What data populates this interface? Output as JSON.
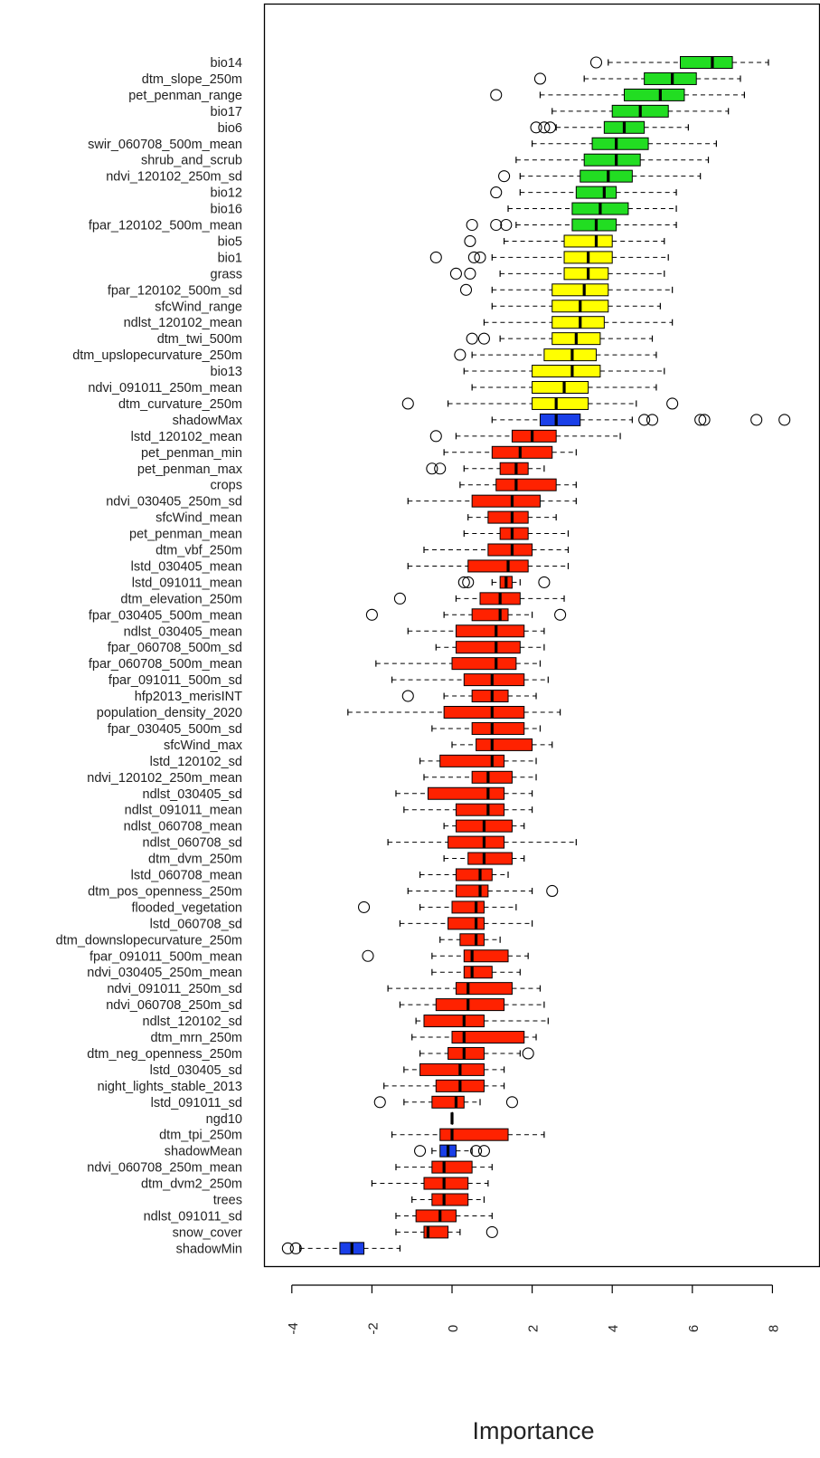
{
  "chart_data": {
    "type": "boxplot",
    "orientation": "horizontal",
    "xlabel": "Importance",
    "xlim": [
      -4.5,
      8.5
    ],
    "xticks": [
      -4,
      -2,
      0,
      2,
      4,
      6,
      8
    ],
    "xtick_labels": [
      "-4",
      "-2",
      "0",
      "2",
      "4",
      "6",
      "8"
    ],
    "colors": {
      "green": "#22dd22",
      "yellow": "#ffff00",
      "red": "#ff2200",
      "blue": "#1a3fe8"
    },
    "series": [
      {
        "name": "bio14",
        "color": "green",
        "wlo": 3.9,
        "q1": 5.7,
        "med": 6.5,
        "q3": 7.0,
        "whi": 7.9,
        "out": [
          3.6
        ]
      },
      {
        "name": "dtm_slope_250m",
        "color": "green",
        "wlo": 3.3,
        "q1": 4.8,
        "med": 5.5,
        "q3": 6.1,
        "whi": 7.2,
        "out": [
          2.2
        ]
      },
      {
        "name": "pet_penman_range",
        "color": "green",
        "wlo": 2.2,
        "q1": 4.3,
        "med": 5.2,
        "q3": 5.8,
        "whi": 7.3,
        "out": [
          1.1
        ]
      },
      {
        "name": "bio17",
        "color": "green",
        "wlo": 2.5,
        "q1": 4.0,
        "med": 4.7,
        "q3": 5.4,
        "whi": 6.9,
        "out": []
      },
      {
        "name": "bio6",
        "color": "green",
        "wlo": 2.6,
        "q1": 3.8,
        "med": 4.3,
        "q3": 4.8,
        "whi": 5.9,
        "out": [
          2.1,
          2.3,
          2.45
        ]
      },
      {
        "name": "swir_060708_500m_mean",
        "color": "green",
        "wlo": 2.0,
        "q1": 3.5,
        "med": 4.1,
        "q3": 4.9,
        "whi": 6.6,
        "out": []
      },
      {
        "name": "shrub_and_scrub",
        "color": "green",
        "wlo": 1.6,
        "q1": 3.3,
        "med": 4.1,
        "q3": 4.7,
        "whi": 6.4,
        "out": []
      },
      {
        "name": "ndvi_120102_250m_sd",
        "color": "green",
        "wlo": 1.7,
        "q1": 3.2,
        "med": 3.9,
        "q3": 4.5,
        "whi": 6.2,
        "out": [
          1.3
        ]
      },
      {
        "name": "bio12",
        "color": "green",
        "wlo": 1.7,
        "q1": 3.1,
        "med": 3.8,
        "q3": 4.1,
        "whi": 5.6,
        "out": [
          1.1
        ]
      },
      {
        "name": "bio16",
        "color": "green",
        "wlo": 1.4,
        "q1": 3.0,
        "med": 3.7,
        "q3": 4.4,
        "whi": 5.6,
        "out": []
      },
      {
        "name": "fpar_120102_500m_mean",
        "color": "green",
        "wlo": 1.6,
        "q1": 3.0,
        "med": 3.6,
        "q3": 4.1,
        "whi": 5.6,
        "out": [
          0.5,
          1.1,
          1.35
        ]
      },
      {
        "name": "bio5",
        "color": "yellow",
        "wlo": 1.3,
        "q1": 2.8,
        "med": 3.6,
        "q3": 4.0,
        "whi": 5.3,
        "out": [
          0.45
        ]
      },
      {
        "name": "bio1",
        "color": "yellow",
        "wlo": 1.0,
        "q1": 2.8,
        "med": 3.4,
        "q3": 4.0,
        "whi": 5.4,
        "out": [
          -0.4,
          0.55,
          0.7
        ]
      },
      {
        "name": "grass",
        "color": "yellow",
        "wlo": 1.2,
        "q1": 2.8,
        "med": 3.4,
        "q3": 3.9,
        "whi": 5.3,
        "out": [
          0.1,
          0.45
        ]
      },
      {
        "name": "fpar_120102_500m_sd",
        "color": "yellow",
        "wlo": 1.0,
        "q1": 2.5,
        "med": 3.3,
        "q3": 3.9,
        "whi": 5.5,
        "out": [
          0.35
        ]
      },
      {
        "name": "sfcWind_range",
        "color": "yellow",
        "wlo": 1.0,
        "q1": 2.5,
        "med": 3.2,
        "q3": 3.9,
        "whi": 5.2,
        "out": []
      },
      {
        "name": "ndlst_120102_mean",
        "color": "yellow",
        "wlo": 0.8,
        "q1": 2.5,
        "med": 3.2,
        "q3": 3.8,
        "whi": 5.5,
        "out": []
      },
      {
        "name": "dtm_twi_500m",
        "color": "yellow",
        "wlo": 1.2,
        "q1": 2.5,
        "med": 3.1,
        "q3": 3.7,
        "whi": 5.0,
        "out": [
          0.5,
          0.8
        ]
      },
      {
        "name": "dtm_upslopecurvature_250m",
        "color": "yellow",
        "wlo": 0.5,
        "q1": 2.3,
        "med": 3.0,
        "q3": 3.6,
        "whi": 5.1,
        "out": [
          0.2
        ]
      },
      {
        "name": "bio13",
        "color": "yellow",
        "wlo": 0.3,
        "q1": 2.0,
        "med": 3.0,
        "q3": 3.7,
        "whi": 5.3,
        "out": []
      },
      {
        "name": "ndvi_091011_250m_mean",
        "color": "yellow",
        "wlo": 0.5,
        "q1": 2.0,
        "med": 2.8,
        "q3": 3.4,
        "whi": 5.1,
        "out": []
      },
      {
        "name": "dtm_curvature_250m",
        "color": "yellow",
        "wlo": -0.1,
        "q1": 2.0,
        "med": 2.6,
        "q3": 3.4,
        "whi": 4.6,
        "out": [
          -1.1,
          5.5
        ]
      },
      {
        "name": "shadowMax",
        "color": "blue",
        "wlo": 1.0,
        "q1": 2.2,
        "med": 2.6,
        "q3": 3.2,
        "whi": 4.5,
        "out": [
          4.8,
          5.0,
          6.2,
          6.3,
          7.6,
          8.3
        ]
      },
      {
        "name": "lstd_120102_mean",
        "color": "red",
        "wlo": 0.1,
        "q1": 1.5,
        "med": 2.0,
        "q3": 2.6,
        "whi": 4.2,
        "out": [
          -0.4
        ]
      },
      {
        "name": "pet_penman_min",
        "color": "red",
        "wlo": -0.2,
        "q1": 1.0,
        "med": 1.7,
        "q3": 2.5,
        "whi": 3.1,
        "out": []
      },
      {
        "name": "pet_penman_max",
        "color": "red",
        "wlo": 0.3,
        "q1": 1.2,
        "med": 1.6,
        "q3": 1.9,
        "whi": 2.3,
        "out": [
          -0.5,
          -0.3
        ]
      },
      {
        "name": "crops",
        "color": "red",
        "wlo": 0.2,
        "q1": 1.1,
        "med": 1.6,
        "q3": 2.6,
        "whi": 3.1,
        "out": []
      },
      {
        "name": "ndvi_030405_250m_sd",
        "color": "red",
        "wlo": -1.1,
        "q1": 0.5,
        "med": 1.5,
        "q3": 2.2,
        "whi": 3.1,
        "out": []
      },
      {
        "name": "sfcWind_mean",
        "color": "red",
        "wlo": 0.4,
        "q1": 0.9,
        "med": 1.5,
        "q3": 1.9,
        "whi": 2.6,
        "out": []
      },
      {
        "name": "pet_penman_mean",
        "color": "red",
        "wlo": 0.3,
        "q1": 1.2,
        "med": 1.5,
        "q3": 1.9,
        "whi": 2.9,
        "out": []
      },
      {
        "name": "dtm_vbf_250m",
        "color": "red",
        "wlo": -0.7,
        "q1": 0.9,
        "med": 1.5,
        "q3": 2.0,
        "whi": 2.9,
        "out": []
      },
      {
        "name": "lstd_030405_mean",
        "color": "red",
        "wlo": -1.1,
        "q1": 0.4,
        "med": 1.4,
        "q3": 1.9,
        "whi": 2.9,
        "out": []
      },
      {
        "name": "lstd_091011_mean",
        "color": "red",
        "wlo": 1.0,
        "q1": 1.2,
        "med": 1.35,
        "q3": 1.5,
        "whi": 1.7,
        "out": [
          0.3,
          0.4,
          2.3
        ]
      },
      {
        "name": "dtm_elevation_250m",
        "color": "red",
        "wlo": 0.1,
        "q1": 0.7,
        "med": 1.2,
        "q3": 1.7,
        "whi": 2.8,
        "out": [
          -1.3
        ]
      },
      {
        "name": "fpar_030405_500m_mean",
        "color": "red",
        "wlo": -0.2,
        "q1": 0.5,
        "med": 1.2,
        "q3": 1.4,
        "whi": 2.0,
        "out": [
          -2.0,
          2.7
        ]
      },
      {
        "name": "ndlst_030405_mean",
        "color": "red",
        "wlo": -1.1,
        "q1": 0.1,
        "med": 1.1,
        "q3": 1.8,
        "whi": 2.3,
        "out": []
      },
      {
        "name": "fpar_060708_500m_sd",
        "color": "red",
        "wlo": -0.4,
        "q1": 0.1,
        "med": 1.1,
        "q3": 1.7,
        "whi": 2.3,
        "out": []
      },
      {
        "name": "fpar_060708_500m_mean",
        "color": "red",
        "wlo": -1.9,
        "q1": 0.0,
        "med": 1.1,
        "q3": 1.6,
        "whi": 2.2,
        "out": []
      },
      {
        "name": "fpar_091011_500m_sd",
        "color": "red",
        "wlo": -1.5,
        "q1": 0.3,
        "med": 1.0,
        "q3": 1.8,
        "whi": 2.4,
        "out": []
      },
      {
        "name": "hfp2013_merisINT",
        "color": "red",
        "wlo": -0.2,
        "q1": 0.5,
        "med": 1.0,
        "q3": 1.4,
        "whi": 2.1,
        "out": [
          -1.1
        ]
      },
      {
        "name": "population_density_2020",
        "color": "red",
        "wlo": -2.6,
        "q1": -0.2,
        "med": 1.0,
        "q3": 1.8,
        "whi": 2.7,
        "out": []
      },
      {
        "name": "fpar_030405_500m_sd",
        "color": "red",
        "wlo": -0.5,
        "q1": 0.5,
        "med": 1.0,
        "q3": 1.8,
        "whi": 2.2,
        "out": []
      },
      {
        "name": "sfcWind_max",
        "color": "red",
        "wlo": 0.0,
        "q1": 0.6,
        "med": 1.0,
        "q3": 2.0,
        "whi": 2.5,
        "out": []
      },
      {
        "name": "lstd_120102_sd",
        "color": "red",
        "wlo": -0.8,
        "q1": -0.3,
        "med": 1.0,
        "q3": 1.3,
        "whi": 2.1,
        "out": []
      },
      {
        "name": "ndvi_120102_250m_mean",
        "color": "red",
        "wlo": -0.7,
        "q1": 0.5,
        "med": 0.9,
        "q3": 1.5,
        "whi": 2.1,
        "out": []
      },
      {
        "name": "ndlst_030405_sd",
        "color": "red",
        "wlo": -1.4,
        "q1": -0.6,
        "med": 0.9,
        "q3": 1.3,
        "whi": 2.0,
        "out": []
      },
      {
        "name": "ndlst_091011_mean",
        "color": "red",
        "wlo": -1.2,
        "q1": 0.1,
        "med": 0.9,
        "q3": 1.3,
        "whi": 2.0,
        "out": []
      },
      {
        "name": "ndlst_060708_mean",
        "color": "red",
        "wlo": -0.2,
        "q1": 0.1,
        "med": 0.8,
        "q3": 1.5,
        "whi": 1.8,
        "out": []
      },
      {
        "name": "ndlst_060708_sd",
        "color": "red",
        "wlo": -1.6,
        "q1": -0.1,
        "med": 0.8,
        "q3": 1.3,
        "whi": 3.1,
        "out": []
      },
      {
        "name": "dtm_dvm_250m",
        "color": "red",
        "wlo": -0.2,
        "q1": 0.4,
        "med": 0.8,
        "q3": 1.5,
        "whi": 1.8,
        "out": []
      },
      {
        "name": "lstd_060708_mean",
        "color": "red",
        "wlo": -0.8,
        "q1": 0.1,
        "med": 0.7,
        "q3": 1.0,
        "whi": 1.4,
        "out": []
      },
      {
        "name": "dtm_pos_openness_250m",
        "color": "red",
        "wlo": -1.1,
        "q1": 0.1,
        "med": 0.7,
        "q3": 0.9,
        "whi": 2.0,
        "out": [
          2.5
        ]
      },
      {
        "name": "flooded_vegetation",
        "color": "red",
        "wlo": -0.8,
        "q1": 0.0,
        "med": 0.6,
        "q3": 0.8,
        "whi": 1.6,
        "out": [
          -2.2
        ]
      },
      {
        "name": "lstd_060708_sd",
        "color": "red",
        "wlo": -1.3,
        "q1": -0.1,
        "med": 0.6,
        "q3": 0.8,
        "whi": 2.0,
        "out": []
      },
      {
        "name": "dtm_downslopecurvature_250m",
        "color": "red",
        "wlo": -0.3,
        "q1": 0.2,
        "med": 0.6,
        "q3": 0.8,
        "whi": 1.2,
        "out": []
      },
      {
        "name": "fpar_091011_500m_mean",
        "color": "red",
        "wlo": -0.5,
        "q1": 0.3,
        "med": 0.5,
        "q3": 1.4,
        "whi": 1.9,
        "out": [
          -2.1
        ]
      },
      {
        "name": "ndvi_030405_250m_mean",
        "color": "red",
        "wlo": -0.5,
        "q1": 0.3,
        "med": 0.5,
        "q3": 1.0,
        "whi": 1.7,
        "out": []
      },
      {
        "name": "ndvi_091011_250m_sd",
        "color": "red",
        "wlo": -1.6,
        "q1": 0.1,
        "med": 0.4,
        "q3": 1.5,
        "whi": 2.2,
        "out": []
      },
      {
        "name": "ndvi_060708_250m_sd",
        "color": "red",
        "wlo": -1.3,
        "q1": -0.4,
        "med": 0.4,
        "q3": 1.3,
        "whi": 2.3,
        "out": []
      },
      {
        "name": "ndlst_120102_sd",
        "color": "red",
        "wlo": -0.9,
        "q1": -0.7,
        "med": 0.3,
        "q3": 0.8,
        "whi": 2.4,
        "out": []
      },
      {
        "name": "dtm_mrn_250m",
        "color": "red",
        "wlo": -1.0,
        "q1": 0.0,
        "med": 0.3,
        "q3": 1.8,
        "whi": 2.1,
        "out": []
      },
      {
        "name": "dtm_neg_openness_250m",
        "color": "red",
        "wlo": -0.8,
        "q1": -0.1,
        "med": 0.3,
        "q3": 0.8,
        "whi": 1.7,
        "out": [
          1.9
        ]
      },
      {
        "name": "lstd_030405_sd",
        "color": "red",
        "wlo": -1.2,
        "q1": -0.8,
        "med": 0.2,
        "q3": 0.8,
        "whi": 1.3,
        "out": []
      },
      {
        "name": "night_lights_stable_2013",
        "color": "red",
        "wlo": -1.7,
        "q1": -0.4,
        "med": 0.2,
        "q3": 0.8,
        "whi": 1.3,
        "out": []
      },
      {
        "name": "lstd_091011_sd",
        "color": "red",
        "wlo": -1.2,
        "q1": -0.5,
        "med": 0.1,
        "q3": 0.3,
        "whi": 0.7,
        "out": [
          -1.8,
          1.5
        ]
      },
      {
        "name": "ngd10",
        "color": "red",
        "wlo": 0.0,
        "q1": 0.0,
        "med": 0.0,
        "q3": 0.0,
        "whi": 0.0,
        "out": []
      },
      {
        "name": "dtm_tpi_250m",
        "color": "red",
        "wlo": -1.5,
        "q1": -0.3,
        "med": 0.0,
        "q3": 1.4,
        "whi": 2.3,
        "out": []
      },
      {
        "name": "shadowMean",
        "color": "blue",
        "wlo": -0.5,
        "q1": -0.3,
        "med": -0.1,
        "q3": 0.1,
        "whi": 0.5,
        "out": [
          -0.8,
          0.6,
          0.8
        ]
      },
      {
        "name": "ndvi_060708_250m_mean",
        "color": "red",
        "wlo": -1.4,
        "q1": -0.5,
        "med": -0.2,
        "q3": 0.5,
        "whi": 1.0,
        "out": []
      },
      {
        "name": "dtm_dvm2_250m",
        "color": "red",
        "wlo": -2.0,
        "q1": -0.7,
        "med": -0.2,
        "q3": 0.4,
        "whi": 0.9,
        "out": []
      },
      {
        "name": "trees",
        "color": "red",
        "wlo": -1.0,
        "q1": -0.5,
        "med": -0.2,
        "q3": 0.4,
        "whi": 0.8,
        "out": []
      },
      {
        "name": "ndlst_091011_sd",
        "color": "red",
        "wlo": -1.4,
        "q1": -0.9,
        "med": -0.3,
        "q3": 0.1,
        "whi": 1.0,
        "out": []
      },
      {
        "name": "snow_cover",
        "color": "red",
        "wlo": -1.4,
        "q1": -0.7,
        "med": -0.6,
        "q3": -0.1,
        "whi": 0.2,
        "out": [
          1.0
        ]
      },
      {
        "name": "shadowMin",
        "color": "blue",
        "wlo": -3.8,
        "q1": -2.8,
        "med": -2.5,
        "q3": -2.2,
        "whi": -1.3,
        "out": [
          -4.1,
          -3.9
        ]
      }
    ]
  }
}
